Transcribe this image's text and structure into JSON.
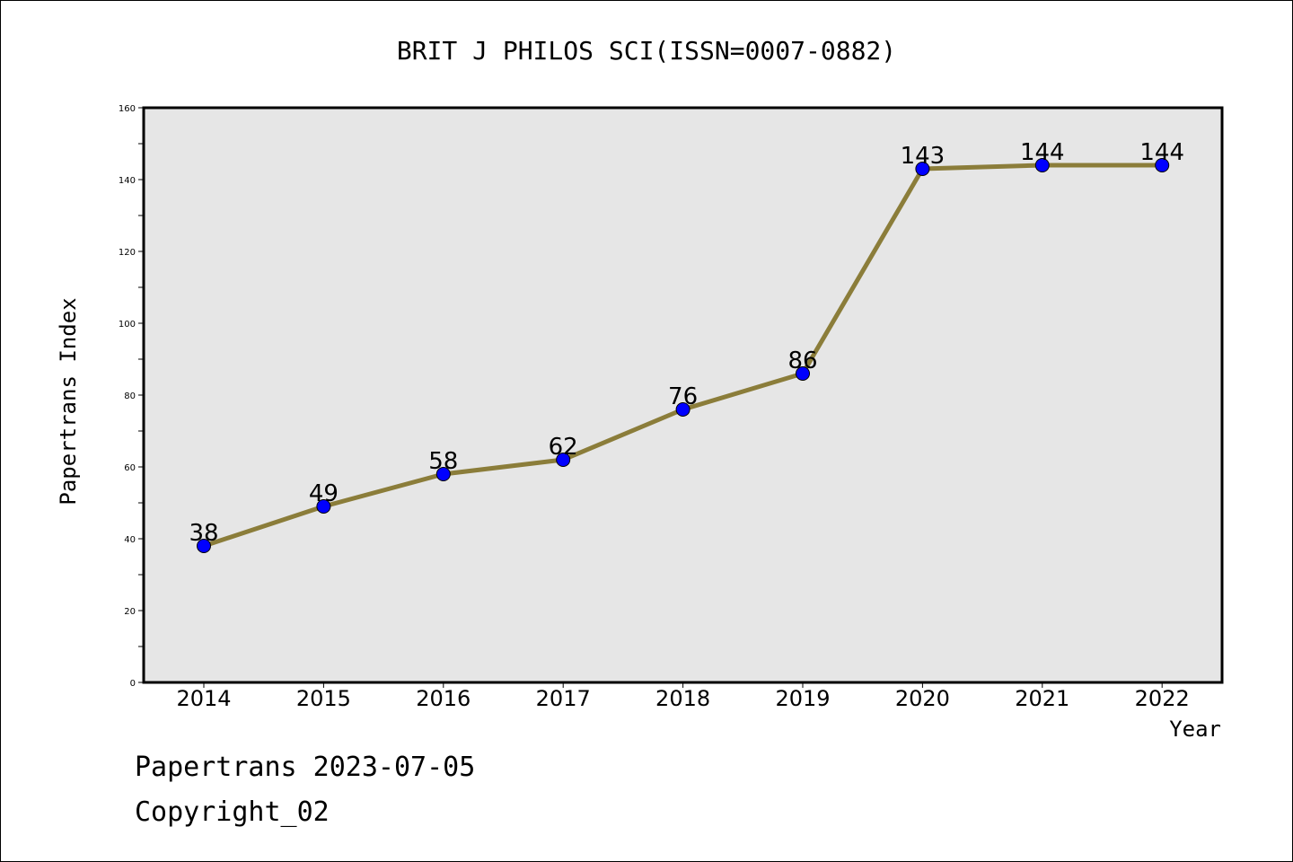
{
  "chart_data": {
    "type": "line",
    "title": "BRIT J PHILOS SCI(ISSN=0007-0882)",
    "xlabel": "Year",
    "ylabel": "Papertrans Index",
    "categories": [
      "2014",
      "2015",
      "2016",
      "2017",
      "2018",
      "2019",
      "2020",
      "2021",
      "2022"
    ],
    "values": [
      38,
      49,
      58,
      62,
      76,
      86,
      143,
      144,
      144
    ],
    "ylim": [
      0,
      160
    ],
    "yticks": [
      0,
      20,
      40,
      60,
      80,
      100,
      120,
      140,
      160
    ],
    "grid": false,
    "colors": {
      "line": "#8B7D3A",
      "marker": "#0000FF",
      "plot_background": "#E6E6E6"
    }
  },
  "footer": {
    "line1": "Papertrans 2023-07-05",
    "line2": "Copyright_02"
  }
}
